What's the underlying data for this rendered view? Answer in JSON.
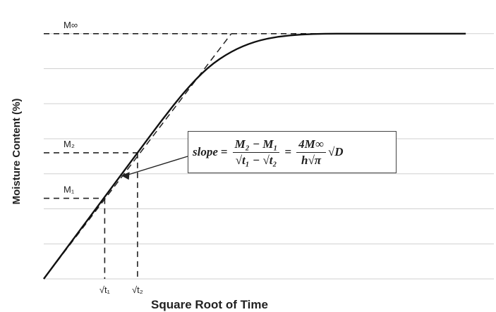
{
  "chart_data": {
    "type": "line",
    "title": "",
    "xlabel": "Square Root of Time",
    "ylabel": "Moisture Content (%)",
    "grid": true,
    "series": [
      {
        "values_x": [
          0,
          0.5,
          1.0,
          1.5,
          2.0,
          2.5,
          3.0,
          3.5,
          4.0,
          4.5,
          5.0,
          5.5,
          6.0,
          6.5,
          7.0,
          7.5,
          8.0,
          8.5,
          9.0
        ],
        "values_y": [
          0,
          0.9,
          1.8,
          2.7,
          3.6,
          4.5,
          5.35,
          6.05,
          6.5,
          6.78,
          6.92,
          6.98,
          7.0,
          7.0,
          7.0,
          7.0,
          7.0,
          7.0,
          7.0
        ]
      }
    ],
    "tangent": {
      "x": [
        0,
        4.0
      ],
      "y": [
        0,
        7.0
      ],
      "style": "dashed"
    },
    "reference_lines": [
      {
        "label": "M∞",
        "y": 7.0
      },
      {
        "label": "M₂",
        "y": 3.6,
        "x_end": 2.0
      },
      {
        "label": "M₁",
        "y": 2.3,
        "x_end": 1.3
      }
    ],
    "x_ticks": [
      {
        "label": "√t₁",
        "x": 1.3
      },
      {
        "label": "√t₂",
        "x": 2.0
      }
    ],
    "annotation": {
      "lhs": "slope",
      "num1": "M₂ − M₁",
      "den1": "√t₁ − √t₂",
      "num2": "4M∞",
      "den2": "h√π",
      "tail": "√D"
    },
    "xlim": [
      0,
      9.6
    ],
    "ylim": [
      0,
      7.8
    ]
  }
}
